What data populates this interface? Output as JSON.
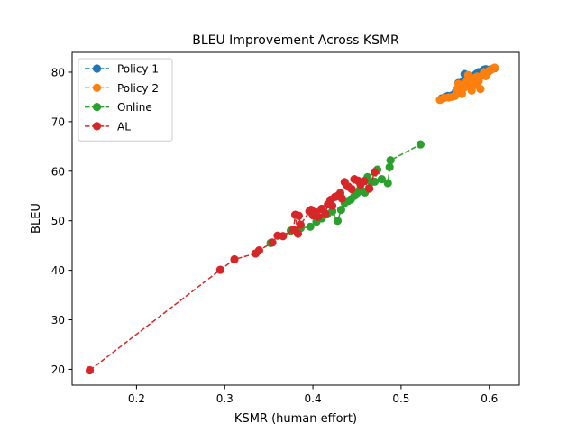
{
  "chart_data": {
    "type": "scatter",
    "title": "BLEU Improvement Across KSMR",
    "xlabel": "KSMR (human effort)",
    "ylabel": "BLEU",
    "xlim": [
      0.127,
      0.634
    ],
    "ylim": [
      16.8,
      84.0
    ],
    "xticks": [
      0.2,
      0.3,
      0.4,
      0.5,
      0.6
    ],
    "xtick_labels": [
      "0.2",
      "0.3",
      "0.4",
      "0.5",
      "0.6"
    ],
    "yticks": [
      20,
      30,
      40,
      50,
      60,
      70,
      80
    ],
    "ytick_labels": [
      "20",
      "30",
      "40",
      "50",
      "60",
      "70",
      "80"
    ],
    "grid": false,
    "legend_position": "top-left",
    "series": [
      {
        "name": "Policy 1",
        "color": "#1f77b4",
        "line_style": "dashed",
        "marker": "circle",
        "points": [
          [
            0.546,
            74.7
          ],
          [
            0.55,
            75.0
          ],
          [
            0.553,
            75.2
          ],
          [
            0.556,
            75.2
          ],
          [
            0.558,
            75.3
          ],
          [
            0.56,
            75.5
          ],
          [
            0.562,
            76.0
          ],
          [
            0.564,
            76.6
          ],
          [
            0.565,
            77.8
          ],
          [
            0.567,
            77.2
          ],
          [
            0.569,
            77.5
          ],
          [
            0.571,
            78.3
          ],
          [
            0.572,
            79.6
          ],
          [
            0.574,
            79.0
          ],
          [
            0.576,
            78.8
          ],
          [
            0.578,
            79.2
          ],
          [
            0.58,
            79.0
          ],
          [
            0.582,
            78.9
          ],
          [
            0.585,
            79.6
          ],
          [
            0.588,
            80.0
          ],
          [
            0.59,
            79.8
          ],
          [
            0.592,
            80.2
          ],
          [
            0.594,
            80.5
          ],
          [
            0.596,
            80.6
          ],
          [
            0.598,
            80.4
          ],
          [
            0.6,
            80.5
          ],
          [
            0.603,
            80.6
          ],
          [
            0.606,
            80.8
          ]
        ]
      },
      {
        "name": "Policy 2",
        "color": "#ff7f0e",
        "line_style": "dashed",
        "marker": "circle",
        "points": [
          [
            0.544,
            74.4
          ],
          [
            0.549,
            74.8
          ],
          [
            0.554,
            74.9
          ],
          [
            0.558,
            75.0
          ],
          [
            0.561,
            75.2
          ],
          [
            0.563,
            76.5
          ],
          [
            0.565,
            77.6
          ],
          [
            0.567,
            76.0
          ],
          [
            0.569,
            75.6
          ],
          [
            0.571,
            76.8
          ],
          [
            0.573,
            78.0
          ],
          [
            0.575,
            77.3
          ],
          [
            0.576,
            79.4
          ],
          [
            0.578,
            78.4
          ],
          [
            0.58,
            76.3
          ],
          [
            0.582,
            78.8
          ],
          [
            0.584,
            77.4
          ],
          [
            0.586,
            79.1
          ],
          [
            0.588,
            78.2
          ],
          [
            0.59,
            76.6
          ],
          [
            0.592,
            79.3
          ],
          [
            0.594,
            80.0
          ],
          [
            0.596,
            79.2
          ],
          [
            0.598,
            79.9
          ],
          [
            0.6,
            80.3
          ],
          [
            0.602,
            80.5
          ],
          [
            0.604,
            80.7
          ],
          [
            0.606,
            80.9
          ]
        ]
      },
      {
        "name": "Online",
        "color": "#2ca02c",
        "line_style": "dashed",
        "marker": "circle",
        "points": [
          [
            0.352,
            45.5
          ],
          [
            0.375,
            48.0
          ],
          [
            0.386,
            48.5
          ],
          [
            0.397,
            48.8
          ],
          [
            0.404,
            49.8
          ],
          [
            0.41,
            50.5
          ],
          [
            0.416,
            51.3
          ],
          [
            0.422,
            51.9
          ],
          [
            0.428,
            50.0
          ],
          [
            0.432,
            52.2
          ],
          [
            0.436,
            53.6
          ],
          [
            0.44,
            54.0
          ],
          [
            0.443,
            54.3
          ],
          [
            0.447,
            55.0
          ],
          [
            0.45,
            55.6
          ],
          [
            0.453,
            56.2
          ],
          [
            0.456,
            56.0
          ],
          [
            0.459,
            55.7
          ],
          [
            0.462,
            58.8
          ],
          [
            0.466,
            57.8
          ],
          [
            0.47,
            57.9
          ],
          [
            0.473,
            60.3
          ],
          [
            0.478,
            58.4
          ],
          [
            0.485,
            57.6
          ],
          [
            0.487,
            60.8
          ],
          [
            0.488,
            62.2
          ],
          [
            0.522,
            65.4
          ]
        ]
      },
      {
        "name": "AL",
        "color": "#d62728",
        "line_style": "dashed",
        "marker": "circle",
        "points": [
          [
            0.147,
            19.8
          ],
          [
            0.295,
            40.1
          ],
          [
            0.311,
            42.2
          ],
          [
            0.335,
            43.4
          ],
          [
            0.339,
            44.0
          ],
          [
            0.354,
            45.6
          ],
          [
            0.36,
            47.0
          ],
          [
            0.366,
            46.9
          ],
          [
            0.378,
            48.2
          ],
          [
            0.38,
            51.2
          ],
          [
            0.383,
            47.4
          ],
          [
            0.384,
            51.0
          ],
          [
            0.386,
            49.2
          ],
          [
            0.396,
            51.9
          ],
          [
            0.398,
            52.2
          ],
          [
            0.4,
            51.1
          ],
          [
            0.403,
            51.7
          ],
          [
            0.406,
            50.8
          ],
          [
            0.41,
            52.4
          ],
          [
            0.414,
            51.4
          ],
          [
            0.417,
            53.3
          ],
          [
            0.42,
            54.2
          ],
          [
            0.422,
            53.0
          ],
          [
            0.425,
            54.8
          ],
          [
            0.428,
            55.0
          ],
          [
            0.431,
            55.6
          ],
          [
            0.433,
            54.5
          ],
          [
            0.436,
            57.8
          ],
          [
            0.44,
            56.9
          ],
          [
            0.444,
            56.4
          ],
          [
            0.447,
            58.4
          ],
          [
            0.451,
            58.1
          ],
          [
            0.454,
            57.3
          ],
          [
            0.458,
            58.0
          ],
          [
            0.464,
            56.5
          ],
          [
            0.47,
            59.8
          ]
        ]
      }
    ]
  }
}
